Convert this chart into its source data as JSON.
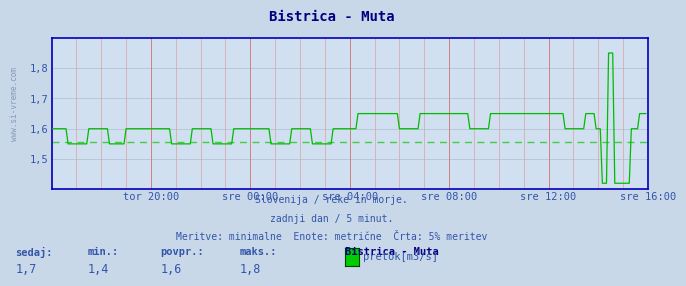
{
  "title": "Bistrica - Muta",
  "title_color": "#000080",
  "bg_color": "#c8d8e8",
  "plot_bg_color": "#d0e0f0",
  "grid_color_h": "#b8c8d8",
  "grid_color_v_major": "#d08080",
  "grid_color_v_minor": "#dca0a0",
  "line_color": "#00bb00",
  "avg_line_color": "#44cc44",
  "border_color": "#0000bb",
  "tick_color": "#3355aa",
  "footer_color": "#3355aa",
  "xlim": [
    0,
    288
  ],
  "ylim": [
    1.4,
    1.9
  ],
  "yticks": [
    1.5,
    1.6,
    1.7,
    1.8
  ],
  "ytick_labels": [
    "1,5",
    "1,6",
    "1,7",
    "1,8"
  ],
  "xtick_positions": [
    48,
    96,
    144,
    192,
    240,
    288
  ],
  "xtick_labels": [
    "tor 20:00",
    "sre 00:00",
    "sre 04:00",
    "sre 08:00",
    "sre 12:00",
    "sre 16:00"
  ],
  "avg_value": 1.555,
  "footer_line1": "Slovenija / reke in morje.",
  "footer_line2": "zadnji dan / 5 minut.",
  "footer_line3": "Meritve: minimalne  Enote: metrične  Črta: 5% meritev",
  "stats_labels": [
    "sedaj:",
    "min.:",
    "povpr.:",
    "maks.:"
  ],
  "stats_values": [
    "1,7",
    "1,4",
    "1,6",
    "1,8"
  ],
  "legend_series_title": "Bistrica - Muta",
  "legend_label": "pretok[m3/s]",
  "legend_color": "#00cc00",
  "sidebar_text": "www.si-vreme.com"
}
